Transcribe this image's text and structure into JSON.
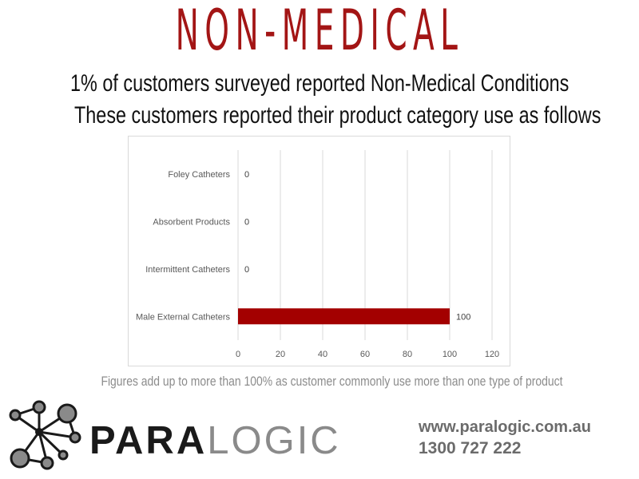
{
  "header": {
    "title": "NON-MEDICAL",
    "subtitle_line1": "1% of customers surveyed reported Non-Medical Conditions",
    "subtitle_line2": "These customers reported their product category use as follows"
  },
  "chart_data": {
    "type": "bar",
    "orientation": "horizontal",
    "categories": [
      "Foley Catheters",
      "Absorbent Products",
      "Intermittent Catheters",
      "Male External Catheters"
    ],
    "values": [
      0,
      0,
      0,
      100
    ],
    "data_labels": [
      "0",
      "0",
      "0",
      "100"
    ],
    "xlim": [
      0,
      120
    ],
    "x_ticks": [
      0,
      20,
      40,
      60,
      80,
      100,
      120
    ],
    "grid": true,
    "bar_color": "#a30000"
  },
  "footnote": "Figures add up to more than 100% as customer commonly use more than one type of product",
  "branding": {
    "logo_text_bold": "PARA",
    "logo_text_light": "LOGIC",
    "website": "www.paralogic.com.au",
    "phone": "1300 727 222"
  }
}
